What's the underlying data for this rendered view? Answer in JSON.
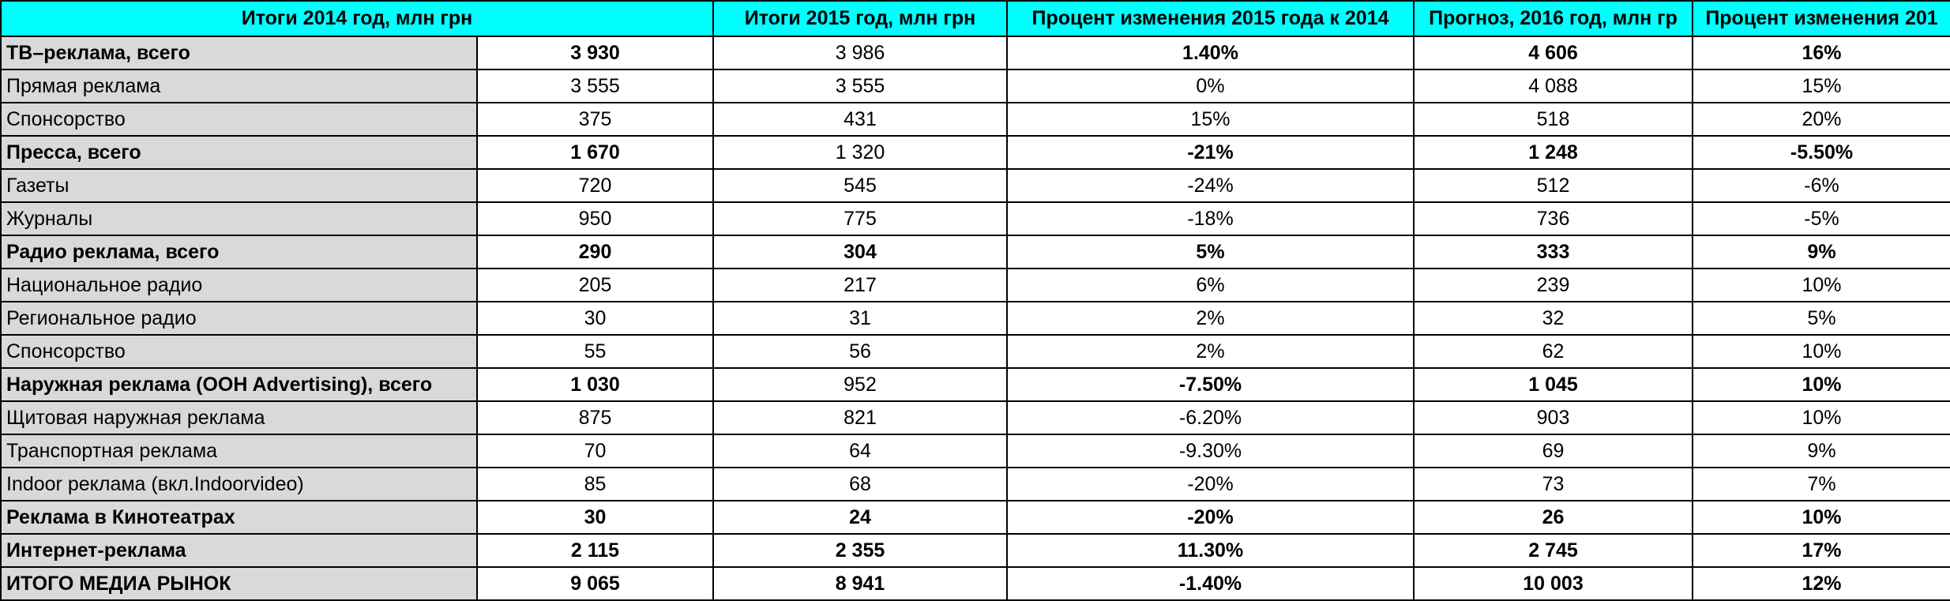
{
  "table": {
    "header": [
      "Итоги 2014 год, млн грн",
      "Итоги 2015 год, млн грн",
      "Процент изменения 2015 года к 2014",
      "Прогноз, 2016 год, млн гр",
      "Процент изменения 201"
    ],
    "rows": [
      [
        "ТВ–реклама, всего",
        "3 930",
        "3 986",
        "1.40%",
        "4 606",
        "16%"
      ],
      [
        "Прямая реклама",
        "3 555",
        "3 555",
        "0%",
        "4 088",
        "15%"
      ],
      [
        "Спонсорство",
        "375",
        "431",
        "15%",
        "518",
        "20%"
      ],
      [
        "Пресса, всего",
        "1 670",
        "1 320",
        "-21%",
        "1 248",
        "-5.50%"
      ],
      [
        "Газеты",
        "720",
        "545",
        "-24%",
        "512",
        "-6%"
      ],
      [
        "Журналы",
        "950",
        "775",
        "-18%",
        "736",
        "-5%"
      ],
      [
        "Радио реклама, всего",
        "290",
        "304",
        "5%",
        "333",
        "9%"
      ],
      [
        "Национальное радио",
        "205",
        "217",
        "6%",
        "239",
        "10%"
      ],
      [
        "Региональное радио",
        "30",
        "31",
        "2%",
        "32",
        "5%"
      ],
      [
        "Спонсорство",
        "55",
        "56",
        "2%",
        "62",
        "10%"
      ],
      [
        "Наружная реклама (OOH Advertising), всего",
        "1 030",
        "952",
        "-7.50%",
        "1 045",
        "10%"
      ],
      [
        "Щитовая наружная реклама",
        "875",
        "821",
        "-6.20%",
        "903",
        "10%"
      ],
      [
        "Транспортная реклама",
        "70",
        "64",
        "-9.30%",
        "69",
        "9%"
      ],
      [
        "Indoor реклама (вкл.Indoorvideo)",
        "85",
        "68",
        "-20%",
        "73",
        "7%"
      ],
      [
        "Реклама в Кинотеатрах",
        "30",
        "24",
        "-20%",
        "26",
        "10%"
      ],
      [
        "Интернет-реклама",
        "2 115",
        "2 355",
        "11.30%",
        "2 745",
        "17%"
      ],
      [
        "ИТОГО МЕДИА РЫНОК",
        "9 065",
        "8 941",
        "-1.40%",
        "10 003",
        "12%"
      ]
    ]
  }
}
